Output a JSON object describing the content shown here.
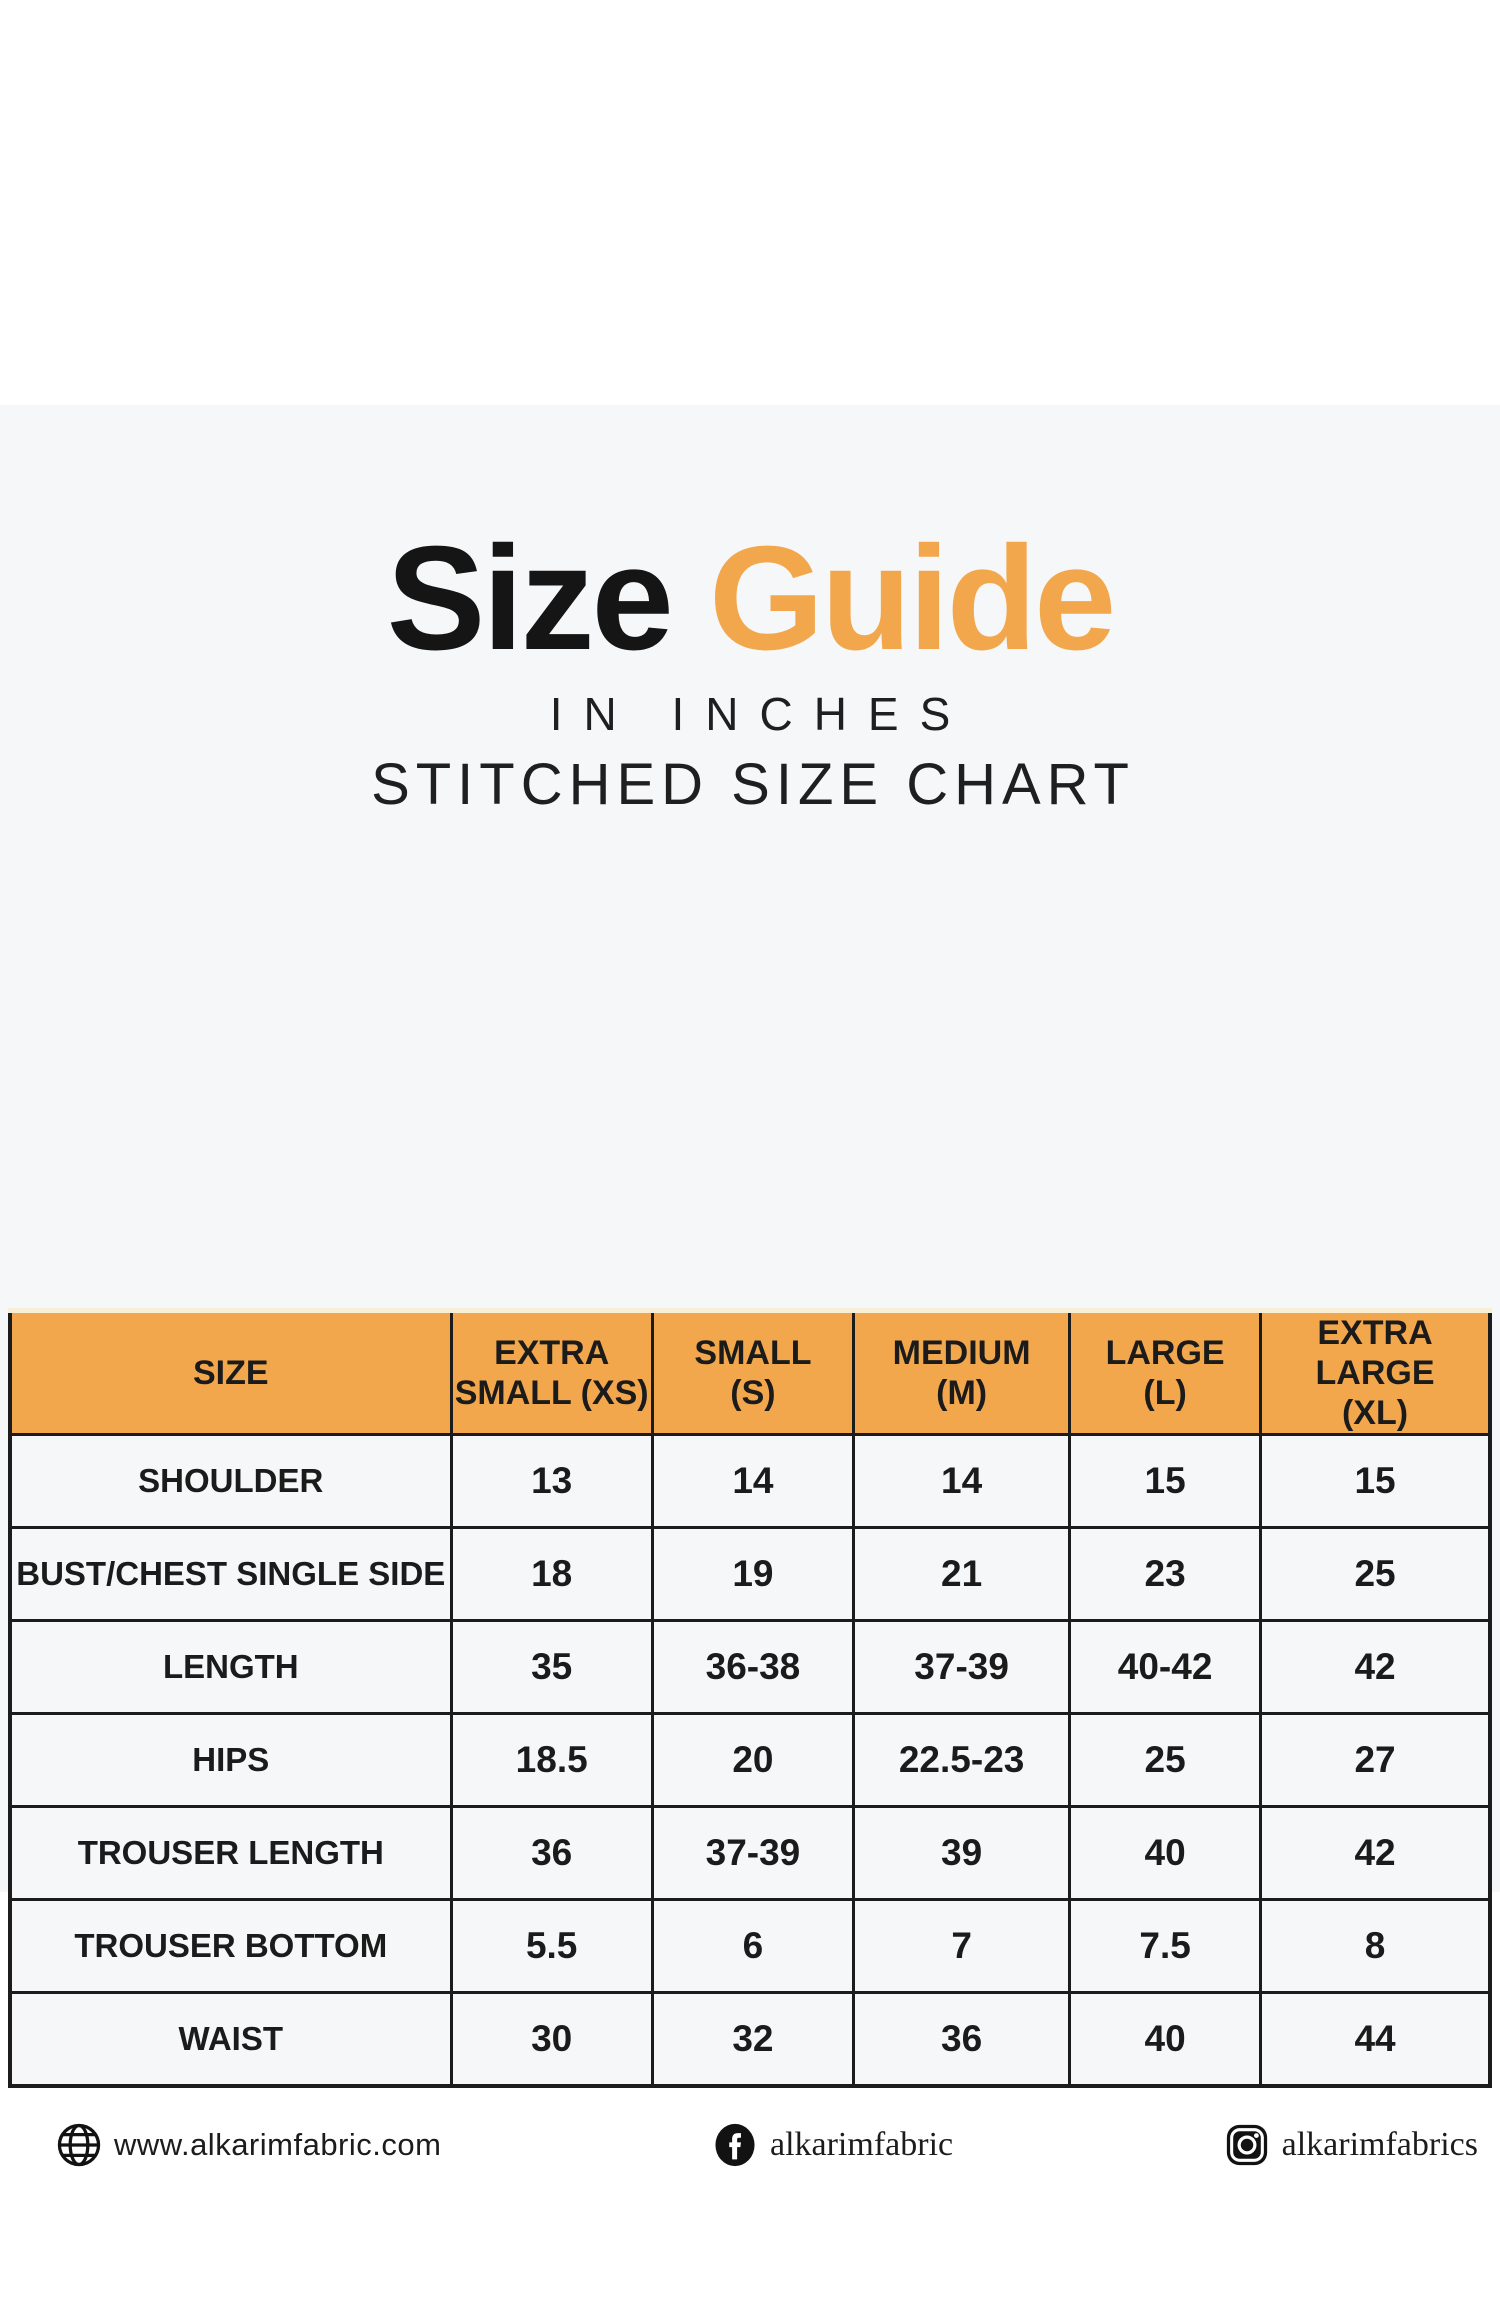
{
  "colors": {
    "accent_orange": "#f2a74c",
    "text_black": "#1b1b1b",
    "band_background": "#f6f7f8",
    "page_background": "#ffffff",
    "table_border": "#1c1c1c"
  },
  "title": {
    "black_part": "Size",
    "orange_part": "Guide",
    "subtitle1": "IN INCHES",
    "subtitle2": "STITCHED SIZE CHART"
  },
  "table": {
    "columns": [
      {
        "label": "SIZE",
        "lines": [
          "SIZE"
        ]
      },
      {
        "label": "EXTRA SMALL (XS)",
        "lines": [
          "EXTRA",
          "SMALL (XS)"
        ]
      },
      {
        "label": "SMALL (S)",
        "lines": [
          "SMALL",
          "(S)"
        ]
      },
      {
        "label": "MEDIUM (M)",
        "lines": [
          "MEDIUM",
          "(M)"
        ]
      },
      {
        "label": "LARGE (L)",
        "lines": [
          "LARGE",
          "(L)"
        ]
      },
      {
        "label": "EXTRA LARGE (XL)",
        "lines": [
          "EXTRA LARGE",
          "(XL)"
        ]
      }
    ],
    "rows": [
      {
        "label": "SHOULDER",
        "values": [
          "13",
          "14",
          "14",
          "15",
          "15"
        ]
      },
      {
        "label": "BUST/CHEST SINGLE SIDE",
        "values": [
          "18",
          "19",
          "21",
          "23",
          "25"
        ]
      },
      {
        "label": "LENGTH",
        "values": [
          "35",
          "36-38",
          "37-39",
          "40-42",
          "42"
        ]
      },
      {
        "label": "HIPS",
        "values": [
          "18.5",
          "20",
          "22.5-23",
          "25",
          "27"
        ]
      },
      {
        "label": "TROUSER LENGTH",
        "values": [
          "36",
          "37-39",
          "39",
          "40",
          "42"
        ]
      },
      {
        "label": "TROUSER BOTTOM",
        "values": [
          "5.5",
          "6",
          "7",
          "7.5",
          "8"
        ]
      },
      {
        "label": "WAIST",
        "values": [
          "30",
          "32",
          "36",
          "40",
          "44"
        ]
      }
    ]
  },
  "chart_data": {
    "type": "table",
    "title": "Size Guide",
    "subtitle": [
      "IN INCHES",
      "STITCHED SIZE CHART"
    ],
    "columns": [
      "SIZE",
      "EXTRA SMALL (XS)",
      "SMALL (S)",
      "MEDIUM (M)",
      "LARGE (L)",
      "EXTRA LARGE (XL)"
    ],
    "rows": [
      [
        "SHOULDER",
        "13",
        "14",
        "14",
        "15",
        "15"
      ],
      [
        "BUST/CHEST SINGLE SIDE",
        "18",
        "19",
        "21",
        "23",
        "25"
      ],
      [
        "LENGTH",
        "35",
        "36-38",
        "37-39",
        "40-42",
        "42"
      ],
      [
        "HIPS",
        "18.5",
        "20",
        "22.5-23",
        "25",
        "27"
      ],
      [
        "TROUSER LENGTH",
        "36",
        "37-39",
        "39",
        "40",
        "42"
      ],
      [
        "TROUSER BOTTOM",
        "5.5",
        "6",
        "7",
        "7.5",
        "8"
      ],
      [
        "WAIST",
        "30",
        "32",
        "36",
        "40",
        "44"
      ]
    ]
  },
  "footer": {
    "website": "www.alkarimfabric.com",
    "facebook": "alkarimfabric",
    "instagram": "alkarimfabrics",
    "icons": [
      "globe-icon",
      "facebook-icon",
      "instagram-icon"
    ]
  }
}
